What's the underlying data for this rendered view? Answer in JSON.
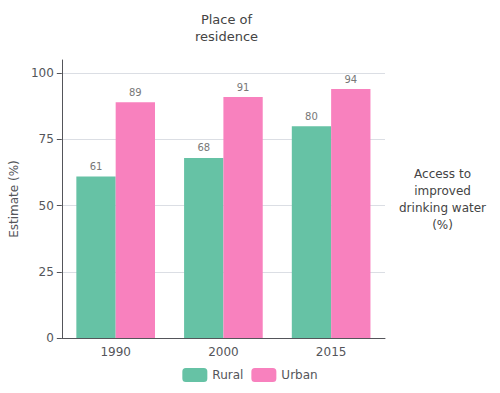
{
  "chart_data": {
    "type": "bar",
    "title": "Place of\nresidence",
    "categories": [
      "1990",
      "2000",
      "2015"
    ],
    "series": [
      {
        "name": "Rural",
        "color": "#66C2A5",
        "values": [
          61,
          68,
          80
        ]
      },
      {
        "name": "Urban",
        "color": "#F881BE",
        "values": [
          89,
          91,
          94
        ]
      }
    ],
    "ylabel": "Estimate (%)",
    "annotations": [
      "Access to\nimproved\ndrinking water\n(%)"
    ],
    "ylim": [
      0,
      105
    ],
    "yticks": [
      0,
      25,
      50,
      75,
      100
    ],
    "grid": true,
    "legend": "bottom",
    "data_labels": true
  }
}
